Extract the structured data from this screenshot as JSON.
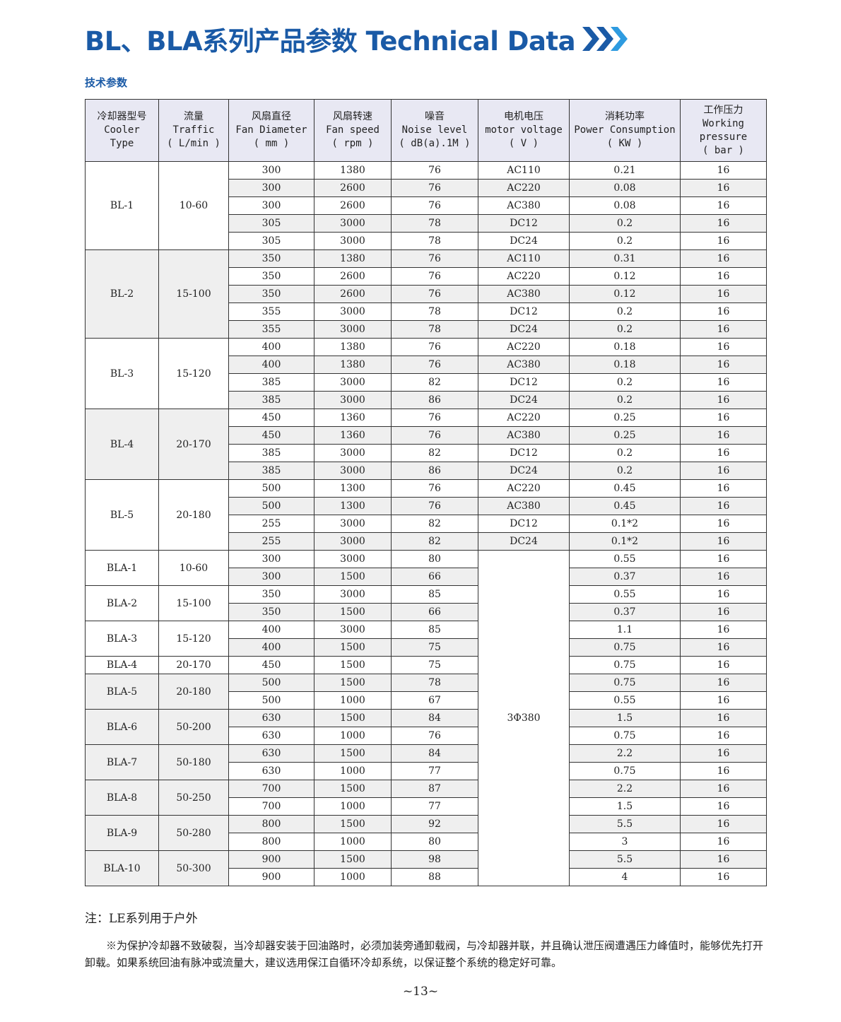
{
  "title": "BL、BLA系列产品参数 Technical Data",
  "subtitle": "技术参数",
  "accent": "#1a5aa6",
  "headers": [
    [
      "冷却器型号",
      "Cooler",
      "Type"
    ],
    [
      "流量",
      "Traffic",
      "( L/min )"
    ],
    [
      "风扇直径",
      "Fan Diameter",
      "( mm )"
    ],
    [
      "风扇转速",
      "Fan speed",
      "( rpm )"
    ],
    [
      "噪音",
      "Noise level",
      "( dB(a).1M )"
    ],
    [
      "电机电压",
      "motor voltage",
      "( V )"
    ],
    [
      "消耗功率",
      "Power Consumption",
      "( KW )"
    ],
    [
      "工作压力",
      "Working",
      "pressure",
      "( bar )"
    ]
  ],
  "bla_voltage": "3Φ380",
  "groups": [
    {
      "type": "BL-1",
      "traffic": "10-60",
      "rows": [
        [
          "300",
          "1380",
          "76",
          "AC110",
          "0.21",
          "16"
        ],
        [
          "300",
          "2600",
          "76",
          "AC220",
          "0.08",
          "16"
        ],
        [
          "300",
          "2600",
          "76",
          "AC380",
          "0.08",
          "16"
        ],
        [
          "305",
          "3000",
          "78",
          "DC12",
          "0.2",
          "16"
        ],
        [
          "305",
          "3000",
          "78",
          "DC24",
          "0.2",
          "16"
        ]
      ]
    },
    {
      "type": "BL-2",
      "traffic": "15-100",
      "rows": [
        [
          "350",
          "1380",
          "76",
          "AC110",
          "0.31",
          "16"
        ],
        [
          "350",
          "2600",
          "76",
          "AC220",
          "0.12",
          "16"
        ],
        [
          "350",
          "2600",
          "76",
          "AC380",
          "0.12",
          "16"
        ],
        [
          "355",
          "3000",
          "78",
          "DC12",
          "0.2",
          "16"
        ],
        [
          "355",
          "3000",
          "78",
          "DC24",
          "0.2",
          "16"
        ]
      ]
    },
    {
      "type": "BL-3",
      "traffic": "15-120",
      "rows": [
        [
          "400",
          "1380",
          "76",
          "AC220",
          "0.18",
          "16"
        ],
        [
          "400",
          "1380",
          "76",
          "AC380",
          "0.18",
          "16"
        ],
        [
          "385",
          "3000",
          "82",
          "DC12",
          "0.2",
          "16"
        ],
        [
          "385",
          "3000",
          "86",
          "DC24",
          "0.2",
          "16"
        ]
      ]
    },
    {
      "type": "BL-4",
      "traffic": "20-170",
      "rows": [
        [
          "450",
          "1360",
          "76",
          "AC220",
          "0.25",
          "16"
        ],
        [
          "450",
          "1360",
          "76",
          "AC380",
          "0.25",
          "16"
        ],
        [
          "385",
          "3000",
          "82",
          "DC12",
          "0.2",
          "16"
        ],
        [
          "385",
          "3000",
          "86",
          "DC24",
          "0.2",
          "16"
        ]
      ]
    },
    {
      "type": "BL-5",
      "traffic": "20-180",
      "rows": [
        [
          "500",
          "1300",
          "76",
          "AC220",
          "0.45",
          "16"
        ],
        [
          "500",
          "1300",
          "76",
          "AC380",
          "0.45",
          "16"
        ],
        [
          "255",
          "3000",
          "82",
          "DC12",
          "0.1*2",
          "16"
        ],
        [
          "255",
          "3000",
          "82",
          "DC24",
          "0.1*2",
          "16"
        ]
      ]
    },
    {
      "type": "BLA-1",
      "traffic": "10-60",
      "rows": [
        [
          "300",
          "3000",
          "80",
          null,
          "0.55",
          "16"
        ],
        [
          "300",
          "1500",
          "66",
          null,
          "0.37",
          "16"
        ]
      ]
    },
    {
      "type": "BLA-2",
      "traffic": "15-100",
      "rows": [
        [
          "350",
          "3000",
          "85",
          null,
          "0.55",
          "16"
        ],
        [
          "350",
          "1500",
          "66",
          null,
          "0.37",
          "16"
        ]
      ]
    },
    {
      "type": "BLA-3",
      "traffic": "15-120",
      "rows": [
        [
          "400",
          "3000",
          "85",
          null,
          "1.1",
          "16"
        ],
        [
          "400",
          "1500",
          "75",
          null,
          "0.75",
          "16"
        ]
      ]
    },
    {
      "type": "BLA-4",
      "traffic": "20-170",
      "rows": [
        [
          "450",
          "1500",
          "75",
          null,
          "0.75",
          "16"
        ]
      ]
    },
    {
      "type": "BLA-5",
      "traffic": "20-180",
      "rows": [
        [
          "500",
          "1500",
          "78",
          null,
          "0.75",
          "16"
        ],
        [
          "500",
          "1000",
          "67",
          null,
          "0.55",
          "16"
        ]
      ]
    },
    {
      "type": "BLA-6",
      "traffic": "50-200",
      "rows": [
        [
          "630",
          "1500",
          "84",
          null,
          "1.5",
          "16"
        ],
        [
          "630",
          "1000",
          "76",
          null,
          "0.75",
          "16"
        ]
      ]
    },
    {
      "type": "BLA-7",
      "traffic": "50-180",
      "rows": [
        [
          "630",
          "1500",
          "84",
          null,
          "2.2",
          "16"
        ],
        [
          "630",
          "1000",
          "77",
          null,
          "0.75",
          "16"
        ]
      ]
    },
    {
      "type": "BLA-8",
      "traffic": "50-250",
      "rows": [
        [
          "700",
          "1500",
          "87",
          null,
          "2.2",
          "16"
        ],
        [
          "700",
          "1000",
          "77",
          null,
          "1.5",
          "16"
        ]
      ]
    },
    {
      "type": "BLA-9",
      "traffic": "50-280",
      "rows": [
        [
          "800",
          "1500",
          "92",
          null,
          "5.5",
          "16"
        ],
        [
          "800",
          "1000",
          "80",
          null,
          "3",
          "16"
        ]
      ]
    },
    {
      "type": "BLA-10",
      "traffic": "50-300",
      "rows": [
        [
          "900",
          "1500",
          "98",
          null,
          "5.5",
          "16"
        ],
        [
          "900",
          "1000",
          "88",
          null,
          "4",
          "16"
        ]
      ]
    }
  ],
  "note": "注：LE系列用于户外",
  "paragraph": "※为保护冷却器不致破裂，当冷却器安装于回油路时，必须加装旁通卸载阀，与冷却器并联，并且确认泄压阀遭遇压力峰值时，能够优先打开卸载。如果系统回油有脉冲或流量大，建议选用保江自循环冷却系统，以保证整个系统的稳定好可靠。",
  "page_number": "~13~"
}
